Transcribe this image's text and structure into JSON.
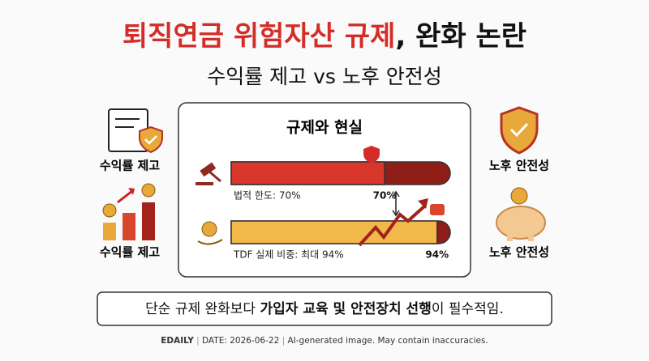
{
  "title": {
    "red": "퇴직연금 위험자산 규제",
    "black": ", 완화 논란"
  },
  "subtitle": "수익률 제고 vs 노후 안전성",
  "left_labels": [
    "수익률 제고",
    "수익률 제고"
  ],
  "right_labels": [
    "노후 안전성",
    "노후 안전성"
  ],
  "panel": {
    "title": "규제와 현실",
    "bars": [
      {
        "label": "법적 한도: 70%",
        "value": 70,
        "value_label": "70%"
      },
      {
        "label": "TDF 실제 비중: 최대 94%",
        "value": 94,
        "value_label": "94%"
      }
    ]
  },
  "conclusion": {
    "parts": [
      "단순 규제 완화보다 ",
      "가입자 교육 및 안전장치 선행",
      "이 필수적임."
    ]
  },
  "footer": {
    "brand": "EDAILY",
    "date": "DATE: 2026-06-22",
    "note": "AI-generated image. May contain inaccuracies."
  }
}
